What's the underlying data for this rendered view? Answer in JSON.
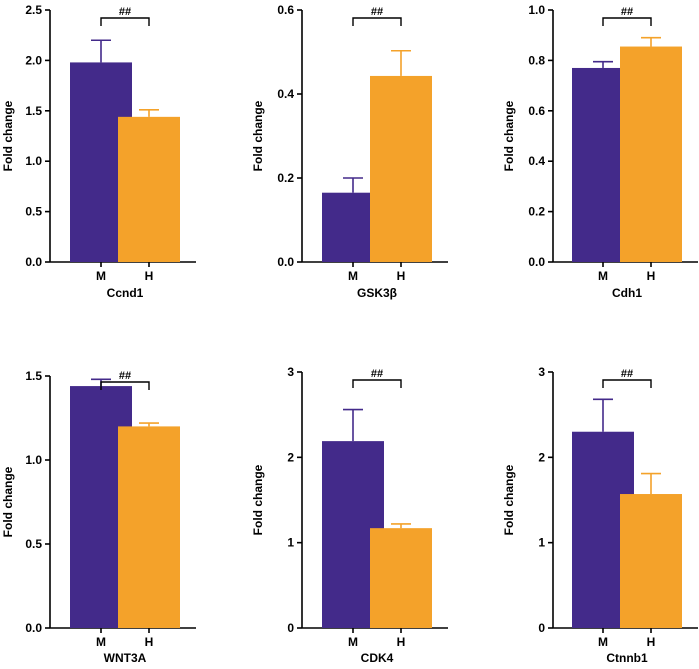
{
  "colors": {
    "M": "#432a8a",
    "H": "#f4a22a",
    "axis": "#000000"
  },
  "chart_data": [
    {
      "type": "bar",
      "title": "Ccnd1",
      "xlabel": "Ccnd1",
      "ylabel": "Fold change",
      "categories": [
        "M",
        "H"
      ],
      "values": [
        1.98,
        1.44
      ],
      "errors": [
        0.22,
        0.07
      ],
      "ylim": [
        0,
        2.5
      ],
      "yticks": [
        "0.0",
        "0.5",
        "1.0",
        "1.5",
        "2.0",
        "2.5"
      ],
      "significance": "##"
    },
    {
      "type": "bar",
      "title": "GSK3β",
      "xlabel": "GSK3β",
      "ylabel": "Fold change",
      "categories": [
        "M",
        "H"
      ],
      "values": [
        0.165,
        0.443
      ],
      "errors": [
        0.035,
        0.06
      ],
      "ylim": [
        0,
        0.6
      ],
      "yticks": [
        "0.0",
        "0.2",
        "0.4",
        "0.6"
      ],
      "significance": "##"
    },
    {
      "type": "bar",
      "title": "Cdh1",
      "xlabel": "Cdh1",
      "ylabel": "Fold change",
      "categories": [
        "M",
        "H"
      ],
      "values": [
        0.77,
        0.855
      ],
      "errors": [
        0.025,
        0.035
      ],
      "ylim": [
        0,
        1.0
      ],
      "yticks": [
        "0.0",
        "0.2",
        "0.4",
        "0.6",
        "0.8",
        "1.0"
      ],
      "significance": "##"
    },
    {
      "type": "bar",
      "title": "WNT3A",
      "xlabel": "WNT3A",
      "ylabel": "Fold change",
      "categories": [
        "M",
        "H"
      ],
      "values": [
        1.44,
        1.2
      ],
      "errors": [
        0.04,
        0.02
      ],
      "ylim": [
        0,
        1.5
      ],
      "yticks": [
        "0.0",
        "0.5",
        "1.0",
        "1.5"
      ],
      "significance": "##"
    },
    {
      "type": "bar",
      "title": "CDK4",
      "xlabel": "CDK4",
      "ylabel": "Fold change",
      "categories": [
        "M",
        "H"
      ],
      "values": [
        2.19,
        1.17
      ],
      "errors": [
        0.37,
        0.05
      ],
      "ylim": [
        0,
        3
      ],
      "yticks": [
        "0",
        "1",
        "2",
        "3"
      ],
      "significance": "##"
    },
    {
      "type": "bar",
      "title": "Ctnnb1",
      "xlabel": "Ctnnb1",
      "ylabel": "Fold change",
      "categories": [
        "M",
        "H"
      ],
      "values": [
        2.3,
        1.57
      ],
      "errors": [
        0.38,
        0.24
      ],
      "ylim": [
        0,
        3
      ],
      "yticks": [
        "0",
        "1",
        "2",
        "3"
      ],
      "significance": "##"
    }
  ]
}
